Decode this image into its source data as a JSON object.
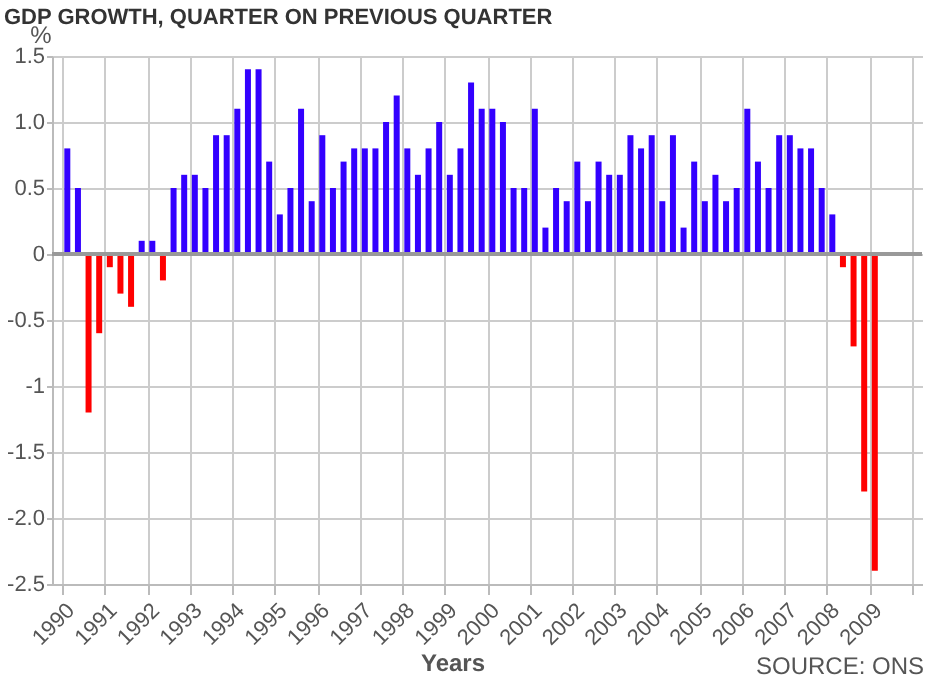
{
  "chart_data": {
    "type": "bar",
    "title": "GDP GROWTH, QUARTER ON PREVIOUS QUARTER",
    "ylabel": "%",
    "xlabel": "Years",
    "annotations": [
      "SOURCE: ONS"
    ],
    "x": [
      1990.125,
      1990.375,
      1990.625,
      1990.875,
      1991.125,
      1991.375,
      1991.625,
      1991.875,
      1992.125,
      1992.375,
      1992.625,
      1992.875,
      1993.125,
      1993.375,
      1993.625,
      1993.875,
      1994.125,
      1994.375,
      1994.625,
      1994.875,
      1995.125,
      1995.375,
      1995.625,
      1995.875,
      1996.125,
      1996.375,
      1996.625,
      1996.875,
      1997.125,
      1997.375,
      1997.625,
      1997.875,
      1998.125,
      1998.375,
      1998.625,
      1998.875,
      1999.125,
      1999.375,
      1999.625,
      1999.875,
      2000.125,
      2000.375,
      2000.625,
      2000.875,
      2001.125,
      2001.375,
      2001.625,
      2001.875,
      2002.125,
      2002.375,
      2002.625,
      2002.875,
      2003.125,
      2003.375,
      2003.625,
      2003.875,
      2004.125,
      2004.375,
      2004.625,
      2004.875,
      2005.125,
      2005.375,
      2005.625,
      2005.875,
      2006.125,
      2006.375,
      2006.625,
      2006.875,
      2007.125,
      2007.375,
      2007.625,
      2007.875,
      2008.125,
      2008.375,
      2008.625,
      2008.875,
      2009.125
    ],
    "values": [
      0.8,
      0.5,
      -1.2,
      -0.6,
      -0.1,
      -0.3,
      -0.4,
      0.1,
      0.1,
      -0.2,
      0.5,
      0.6,
      0.6,
      0.5,
      0.9,
      0.9,
      1.1,
      1.4,
      1.4,
      0.7,
      0.3,
      0.5,
      1.1,
      0.4,
      0.9,
      0.5,
      0.7,
      0.8,
      0.8,
      0.8,
      1.0,
      1.2,
      0.8,
      0.6,
      0.8,
      1.0,
      0.6,
      0.8,
      1.3,
      1.1,
      1.1,
      1.0,
      0.5,
      0.5,
      1.1,
      0.2,
      0.5,
      0.4,
      0.7,
      0.4,
      0.7,
      0.6,
      0.6,
      0.9,
      0.8,
      0.9,
      0.4,
      0.9,
      0.2,
      0.7,
      0.4,
      0.6,
      0.4,
      0.5,
      1.1,
      0.7,
      0.5,
      0.9,
      0.9,
      0.8,
      0.8,
      0.5,
      0.3,
      -0.1,
      -0.7,
      -1.8,
      -2.4
    ],
    "colors": [
      "#3300ff",
      "#3300ff",
      "#ff0000",
      "#ff0000",
      "#ff0000",
      "#ff0000",
      "#ff0000",
      "#3300ff",
      "#3300ff",
      "#ff0000",
      "#3300ff",
      "#3300ff",
      "#3300ff",
      "#3300ff",
      "#3300ff",
      "#3300ff",
      "#3300ff",
      "#3300ff",
      "#3300ff",
      "#3300ff",
      "#3300ff",
      "#3300ff",
      "#3300ff",
      "#3300ff",
      "#3300ff",
      "#3300ff",
      "#3300ff",
      "#3300ff",
      "#3300ff",
      "#3300ff",
      "#3300ff",
      "#3300ff",
      "#3300ff",
      "#3300ff",
      "#3300ff",
      "#3300ff",
      "#3300ff",
      "#3300ff",
      "#3300ff",
      "#3300ff",
      "#3300ff",
      "#3300ff",
      "#3300ff",
      "#3300ff",
      "#3300ff",
      "#3300ff",
      "#3300ff",
      "#3300ff",
      "#3300ff",
      "#3300ff",
      "#3300ff",
      "#3300ff",
      "#3300ff",
      "#3300ff",
      "#3300ff",
      "#3300ff",
      "#3300ff",
      "#3300ff",
      "#3300ff",
      "#3300ff",
      "#3300ff",
      "#3300ff",
      "#3300ff",
      "#3300ff",
      "#3300ff",
      "#3300ff",
      "#3300ff",
      "#3300ff",
      "#3300ff",
      "#3300ff",
      "#3300ff",
      "#3300ff",
      "#3300ff",
      "#ff0000",
      "#ff0000",
      "#ff0000",
      "#ff0000"
    ],
    "xlim": [
      1990,
      2010
    ],
    "xticks": [
      1990,
      1991,
      1992,
      1993,
      1994,
      1995,
      1996,
      1997,
      1998,
      1999,
      2000,
      2001,
      2002,
      2003,
      2004,
      2005,
      2006,
      2007,
      2008,
      2009,
      {
        "value": 2010,
        "label": null
      }
    ],
    "ylim": [
      -2.5,
      1.5
    ],
    "yticks": [
      -2.5,
      {
        "value": -2,
        "label": "-2.0"
      },
      -1.5,
      -1,
      -0.5,
      0,
      0.5,
      {
        "value": 1,
        "label": "1.0"
      },
      1.5
    ],
    "ref_lines": [
      {
        "axis": "y",
        "value": 0,
        "color": "#999999"
      }
    ],
    "grid": true
  }
}
